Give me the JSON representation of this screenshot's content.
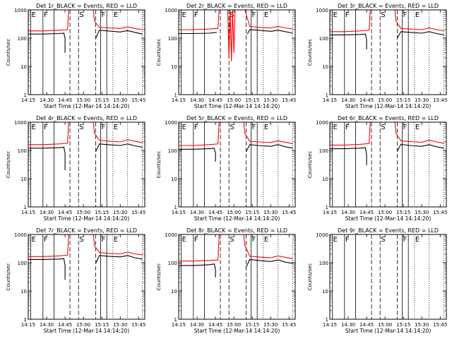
{
  "colors": {
    "background": "#ffffff",
    "events": "#000000",
    "lld": "#ff0000"
  },
  "chart_data": {
    "type": "line",
    "y_scale": "log",
    "ylim": [
      1,
      1000
    ],
    "x_range": [
      "14:15",
      "15:50"
    ],
    "x_ticks": [
      "14:15",
      "14:30",
      "14:45",
      "15:00",
      "15:15",
      "15:30",
      "15:45"
    ],
    "y_ticks": [
      "1",
      "10",
      "100",
      "1000"
    ],
    "ylabel": "Counts/sec",
    "xlabel": "Start Time (12-Mar-14 14:14:20)",
    "grid": false,
    "markers": [
      {
        "label": "E",
        "time": "14:17",
        "style": "solid"
      },
      {
        "label": "F",
        "time": "14:27",
        "style": "solid"
      },
      {
        "label": "",
        "time": "14:36",
        "style": "solid"
      },
      {
        "label": "",
        "time": "14:49",
        "style": "dashed"
      },
      {
        "label": "S",
        "time": "14:56",
        "style": "dashed"
      },
      {
        "label": "",
        "time": "15:10",
        "style": "dashed"
      },
      {
        "label": "F",
        "time": "15:14",
        "style": "solid"
      },
      {
        "label": "",
        "time": "15:19",
        "style": "solid"
      },
      {
        "label": "E",
        "time": "15:24",
        "style": "dotted"
      },
      {
        "label": "",
        "time": "15:36",
        "style": "dotted"
      },
      {
        "label": "",
        "time": "15:48",
        "style": "dotted"
      }
    ],
    "panels": [
      {
        "title": "Det 1r_BLACK = Events, RED = LLD",
        "series": [
          {
            "name": "Events",
            "color": "#000000",
            "x": [
              "14:15",
              "14:27",
              "14:40",
              "14:44",
              "14:45",
              "14:45",
              "14:46",
              "14:47",
              "15:10",
              "15:10",
              "15:13",
              "15:20",
              "15:30",
              "15:36",
              "15:42",
              "15:48"
            ],
            "y": [
              140,
              140,
              145,
              150,
              100,
              30,
              null,
              null,
              null,
              100,
              190,
              180,
              165,
              185,
              160,
              140
            ]
          },
          {
            "name": "LLD",
            "color": "#ff0000",
            "x": [
              "14:15",
              "14:27",
              "14:40",
              "14:47",
              "14:48",
              "14:55",
              "15:08",
              "15:09",
              "15:13",
              "15:20",
              "15:30",
              "15:36",
              "15:42",
              "15:48"
            ],
            "y": [
              180,
              180,
              190,
              200,
              1000,
              1000,
              1000,
              400,
              240,
              230,
              220,
              250,
              220,
              200
            ]
          }
        ]
      },
      {
        "title": "Det 2r_BLACK = Events, RED = LLD",
        "series": [
          {
            "name": "Events",
            "color": "#000000",
            "x": [
              "14:15",
              "14:27",
              "14:40",
              "14:46",
              "14:47",
              "15:11",
              "15:11",
              "15:13",
              "15:20",
              "15:30",
              "15:36",
              "15:42",
              "15:48"
            ],
            "y": [
              145,
              145,
              150,
              160,
              null,
              null,
              140,
              200,
              190,
              175,
              190,
              170,
              150
            ]
          },
          {
            "name": "LLD",
            "color": "#ff0000",
            "x": [
              "14:15",
              "14:27",
              "14:40",
              "14:47",
              "14:48",
              "14:55",
              "14:56",
              "14:57",
              "14:58",
              "14:59",
              "15:00",
              "15:01",
              "15:09",
              "15:13",
              "15:20",
              "15:30",
              "15:36",
              "15:42",
              "15:48"
            ],
            "y": [
              200,
              200,
              210,
              220,
              1000,
              1000,
              20,
              1000,
              15,
              1000,
              30,
              1000,
              1000,
              260,
              240,
              230,
              260,
              230,
              210
            ]
          }
        ]
      },
      {
        "title": "Det 3r_BLACK = Events, RED = LLD",
        "series": [
          {
            "name": "Events",
            "color": "#000000",
            "x": [
              "14:15",
              "14:27",
              "14:40",
              "14:44",
              "14:45",
              "14:45",
              "14:46",
              "14:47",
              "15:10",
              "15:10",
              "15:13",
              "15:20",
              "15:30",
              "15:36",
              "15:42",
              "15:48"
            ],
            "y": [
              130,
              130,
              135,
              140,
              90,
              40,
              null,
              null,
              null,
              100,
              170,
              160,
              150,
              170,
              145,
              130
            ]
          },
          {
            "name": "LLD",
            "color": "#ff0000",
            "x": [
              "14:15",
              "14:27",
              "14:40",
              "14:47",
              "14:48",
              "14:55",
              "15:08",
              "15:09",
              "15:13",
              "15:20",
              "15:30",
              "15:36",
              "15:42",
              "15:48"
            ],
            "y": [
              170,
              170,
              180,
              190,
              1000,
              1000,
              1000,
              400,
              220,
              210,
              200,
              230,
              200,
              185
            ]
          }
        ]
      },
      {
        "title": "Det 4r_BLACK = Events, RED = LLD",
        "series": [
          {
            "name": "Events",
            "color": "#000000",
            "x": [
              "14:15",
              "14:27",
              "14:40",
              "14:44",
              "14:45",
              "14:45",
              "14:46",
              "14:47",
              "15:10",
              "15:10",
              "15:13",
              "15:20",
              "15:30",
              "15:36",
              "15:42",
              "15:48"
            ],
            "y": [
              120,
              120,
              125,
              130,
              80,
              20,
              null,
              null,
              null,
              90,
              170,
              160,
              150,
              170,
              145,
              130
            ]
          },
          {
            "name": "LLD",
            "color": "#ff0000",
            "x": [
              "14:15",
              "14:27",
              "14:40",
              "14:47",
              "14:48",
              "14:55",
              "15:08",
              "15:09",
              "15:13",
              "15:20",
              "15:30",
              "15:36",
              "15:42",
              "15:48"
            ],
            "y": [
              160,
              160,
              170,
              180,
              1000,
              1000,
              1000,
              400,
              230,
              215,
              200,
              240,
              210,
              190
            ]
          }
        ]
      },
      {
        "title": "Det 5r_BLACK = Events, RED = LLD",
        "series": [
          {
            "name": "Events",
            "color": "#000000",
            "x": [
              "14:15",
              "14:27",
              "14:40",
              "14:44",
              "14:45",
              "14:45",
              "14:46",
              "14:47",
              "15:10",
              "15:10",
              "15:13",
              "15:20",
              "15:30",
              "15:36",
              "15:42",
              "15:48"
            ],
            "y": [
              110,
              110,
              115,
              120,
              80,
              40,
              null,
              null,
              null,
              90,
              160,
              150,
              140,
              160,
              135,
              120
            ]
          },
          {
            "name": "LLD",
            "color": "#ff0000",
            "x": [
              "14:15",
              "14:27",
              "14:40",
              "14:47",
              "14:48",
              "14:55",
              "15:08",
              "15:09",
              "15:13",
              "15:20",
              "15:30",
              "15:36",
              "15:42",
              "15:48"
            ],
            "y": [
              150,
              150,
              160,
              170,
              1000,
              1000,
              1000,
              400,
              210,
              200,
              190,
              220,
              195,
              175
            ]
          }
        ]
      },
      {
        "title": "Det 6r_BLACK = Events, RED = LLD",
        "series": [
          {
            "name": "Events",
            "color": "#000000",
            "x": [
              "14:15",
              "14:27",
              "14:40",
              "14:44",
              "14:45",
              "14:45",
              "14:46",
              "14:47",
              "15:10",
              "15:10",
              "15:13",
              "15:20",
              "15:30",
              "15:36",
              "15:42",
              "15:48"
            ],
            "y": [
              115,
              115,
              120,
              125,
              70,
              30,
              null,
              null,
              null,
              95,
              165,
              150,
              140,
              160,
              135,
              120
            ]
          },
          {
            "name": "LLD",
            "color": "#ff0000",
            "x": [
              "14:15",
              "14:27",
              "14:40",
              "14:47",
              "14:48",
              "14:55",
              "15:08",
              "15:09",
              "15:13",
              "15:20",
              "15:30",
              "15:36",
              "15:42",
              "15:48"
            ],
            "y": [
              155,
              155,
              165,
              175,
              1000,
              1000,
              1000,
              400,
              220,
              205,
              195,
              230,
              200,
              180
            ]
          }
        ]
      },
      {
        "title": "Det 7r_BLACK = Events, RED = LLD",
        "series": [
          {
            "name": "Events",
            "color": "#000000",
            "x": [
              "14:15",
              "14:27",
              "14:40",
              "14:44",
              "14:45",
              "14:45",
              "14:46",
              "14:47",
              "15:10",
              "15:10",
              "15:13",
              "15:20",
              "15:30",
              "15:36",
              "15:42",
              "15:48"
            ],
            "y": [
              130,
              130,
              135,
              140,
              80,
              25,
              null,
              null,
              null,
              95,
              180,
              170,
              160,
              180,
              150,
              135
            ]
          },
          {
            "name": "LLD",
            "color": "#ff0000",
            "x": [
              "14:15",
              "14:27",
              "14:40",
              "14:47",
              "14:48",
              "14:55",
              "15:08",
              "15:09",
              "15:13",
              "15:20",
              "15:30",
              "15:36",
              "15:42",
              "15:48"
            ],
            "y": [
              165,
              165,
              175,
              185,
              1000,
              1000,
              1000,
              400,
              230,
              215,
              205,
              240,
              205,
              190
            ]
          }
        ]
      },
      {
        "title": "Det 8r_BLACK = Events, RED = LLD",
        "series": [
          {
            "name": "Events",
            "color": "#000000",
            "x": [
              "14:15",
              "14:27",
              "14:40",
              "14:44",
              "14:45",
              "14:45",
              "14:46",
              "14:47",
              "15:10",
              "15:10",
              "15:13",
              "15:20",
              "15:30",
              "15:36",
              "15:42",
              "15:48"
            ],
            "y": [
              80,
              80,
              85,
              90,
              60,
              30,
              null,
              null,
              null,
              70,
              130,
              120,
              110,
              125,
              105,
              95
            ]
          },
          {
            "name": "LLD",
            "color": "#ff0000",
            "x": [
              "14:15",
              "14:27",
              "14:40",
              "14:47",
              "14:48",
              "14:55",
              "15:08",
              "15:09",
              "15:13",
              "15:20",
              "15:30",
              "15:36",
              "15:42",
              "15:48"
            ],
            "y": [
              115,
              115,
              120,
              125,
              1000,
              1000,
              1000,
              400,
              170,
              160,
              150,
              175,
              155,
              140
            ]
          }
        ]
      },
      {
        "title": "Det 9r_BLACK = Events, RED = LLD",
        "series": []
      }
    ]
  }
}
